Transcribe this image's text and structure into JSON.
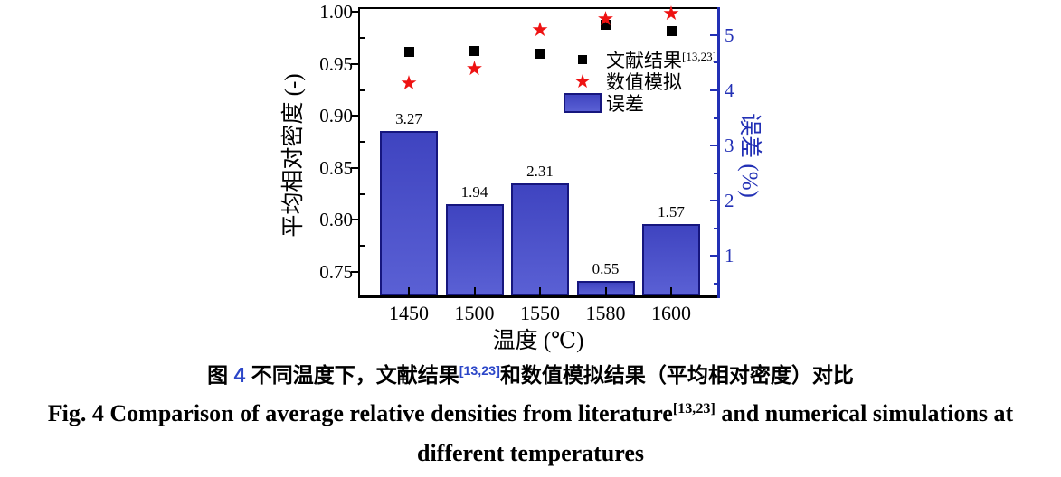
{
  "colors": {
    "bar_fill_top": "#3f44c0",
    "bar_fill_bottom": "#5a60d4",
    "bar_border": "#16167e",
    "right_axis_blue": "#2230b5",
    "marker_red": "#ee1212",
    "marker_black": "#000000",
    "axis_black": "#000000",
    "caption_link_blue": "#2b46c8"
  },
  "icons": {
    "star": "★"
  },
  "chart_data": {
    "type": "bar",
    "title": "",
    "categories": [
      "1450",
      "1500",
      "1550",
      "1580",
      "1600"
    ],
    "series": [
      {
        "name": "文献结果",
        "name_sup": "[13,23]",
        "type": "scatter",
        "marker": "square",
        "axis": "left",
        "values": [
          0.962,
          0.963,
          0.96,
          0.988,
          0.982
        ]
      },
      {
        "name": "数值模拟",
        "type": "scatter",
        "marker": "star",
        "axis": "left",
        "values": [
          0.931,
          0.945,
          0.982,
          0.993,
          0.998
        ]
      },
      {
        "name": "误差",
        "type": "bar",
        "marker": "bar",
        "axis": "right",
        "values": [
          3.27,
          1.94,
          2.31,
          0.55,
          1.57
        ]
      }
    ],
    "x_axis": {
      "label": "温度 (℃)",
      "grid": false
    },
    "left_axis": {
      "label": "平均相对密度 (-)",
      "range": [
        0.7274,
        1.003
      ],
      "ticks": [
        "0.75",
        "0.80",
        "0.85",
        "0.90",
        "0.95",
        "1.00"
      ],
      "minor_ticks": [
        0.775,
        0.825,
        0.875,
        0.925,
        0.975
      ]
    },
    "right_axis": {
      "label": "误差 (%)",
      "range": [
        0.28,
        5.475
      ],
      "ticks": [
        "1",
        "2",
        "3",
        "4",
        "5"
      ],
      "minor_ticks": [
        0.5,
        1.5,
        2.5,
        3.5,
        4.5
      ]
    },
    "legend": {
      "position": "upper-right-inside",
      "items": [
        {
          "label": "文献结果",
          "sup": "[13,23]",
          "marker": "square"
        },
        {
          "label": "数值模拟",
          "sup": "",
          "marker": "star"
        },
        {
          "label": "误差",
          "sup": "",
          "marker": "bar"
        }
      ]
    }
  },
  "caption": {
    "zh": {
      "part1": "图 ",
      "fig_num": "4",
      "part2": " 不同温度下，文献结果",
      "sup": "[13,23]",
      "part3": "和数值模拟结果（平均相对密度）对比"
    },
    "en": {
      "part1": "Fig. 4 Comparison of average relative densities from literature",
      "sup": "[13,23]",
      "part2": " and numerical simulations at",
      "line2": "different temperatures"
    }
  }
}
